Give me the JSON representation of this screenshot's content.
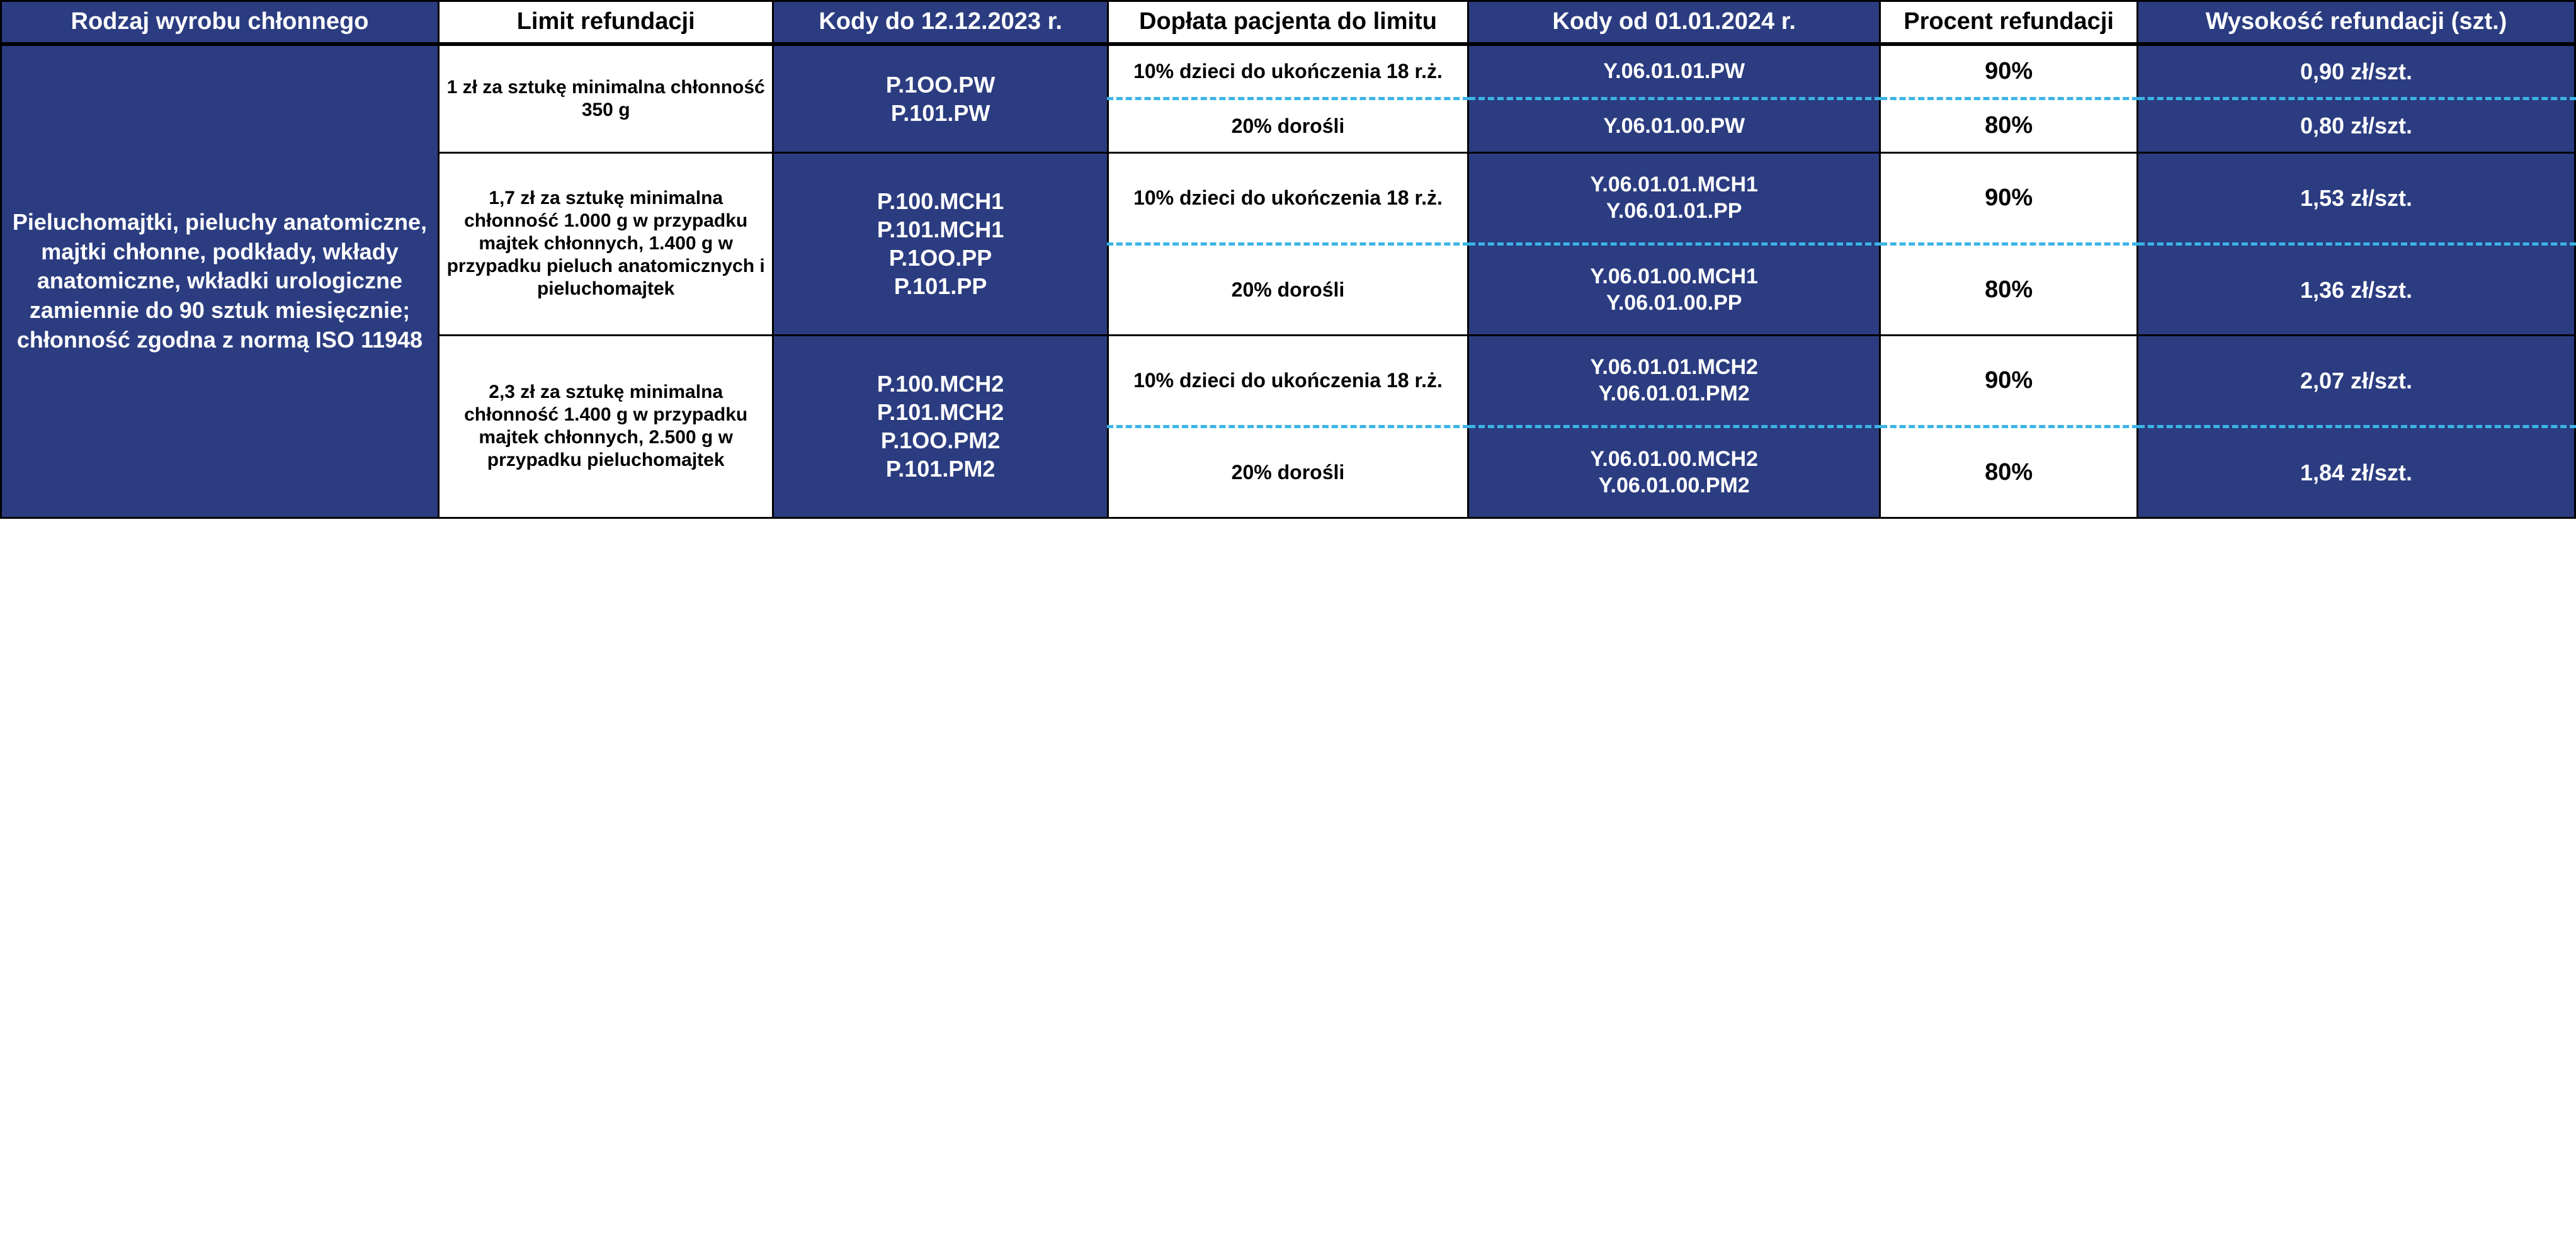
{
  "colors": {
    "navy": "#2b3c80",
    "white": "#ffffff",
    "black": "#000000",
    "dashed": "#3bb4e6"
  },
  "headers": {
    "c1": "Rodzaj wyrobu chłonnego",
    "c2": "Limit refundacji",
    "c3": "Kody do 12.12.2023 r.",
    "c4": "Dopłata pacjenta do limitu",
    "c5": "Kody od 01.01.2024 r.",
    "c6": "Procent refundacji",
    "c7": "Wysokość refundacji (szt.)"
  },
  "rowLabel": "Pieluchomajtki, pieluchy anatomiczne, majtki chłonne, podkłady, wkłady anatomiczne, wkładki urologiczne zamiennie do 90 sztuk miesięcznie; chłonność zgodna z normą ISO 11948",
  "groups": [
    {
      "limit": "1 zł za sztukę minimalna chłonność 350 g",
      "oldCodes": "P.1OO.PW\nP.101.PW",
      "sub": [
        {
          "coPay": "10% dzieci do ukończenia 18 r.ż.",
          "newCodes": "Y.06.01.01.PW",
          "pct": "90%",
          "amount": "0,90 zł/szt."
        },
        {
          "coPay": "20% dorośli",
          "newCodes": "Y.06.01.00.PW",
          "pct": "80%",
          "amount": "0,80 zł/szt."
        }
      ]
    },
    {
      "limit": "1,7 zł za sztukę minimalna chłonność 1.000 g w przypadku majtek chłonnych, 1.400 g w przypadku pieluch anatomicznych i pieluchomajtek",
      "oldCodes": "P.100.MCH1\nP.101.MCH1\nP.1OO.PP\nP.101.PP",
      "sub": [
        {
          "coPay": "10% dzieci do ukończenia 18 r.ż.",
          "newCodes": "Y.06.01.01.MCH1\nY.06.01.01.PP",
          "pct": "90%",
          "amount": "1,53 zł/szt."
        },
        {
          "coPay": "20% dorośli",
          "newCodes": "Y.06.01.00.MCH1\nY.06.01.00.PP",
          "pct": "80%",
          "amount": "1,36 zł/szt."
        }
      ]
    },
    {
      "limit": "2,3 zł za sztukę minimalna chłonność 1.400 g w przypadku majtek chłonnych, 2.500 g w przypadku pieluchomajtek",
      "oldCodes": "P.100.MCH2\nP.101.MCH2\nP.1OO.PM2\nP.101.PM2",
      "sub": [
        {
          "coPay": "10% dzieci do ukończenia 18 r.ż.",
          "newCodes": "Y.06.01.01.MCH2\nY.06.01.01.PM2",
          "pct": "90%",
          "amount": "2,07 zł/szt."
        },
        {
          "coPay": "20% dorośli",
          "newCodes": "Y.06.01.00.MCH2\nY.06.01.00.PM2",
          "pct": "80%",
          "amount": "1,84 zł/szt."
        }
      ]
    }
  ]
}
